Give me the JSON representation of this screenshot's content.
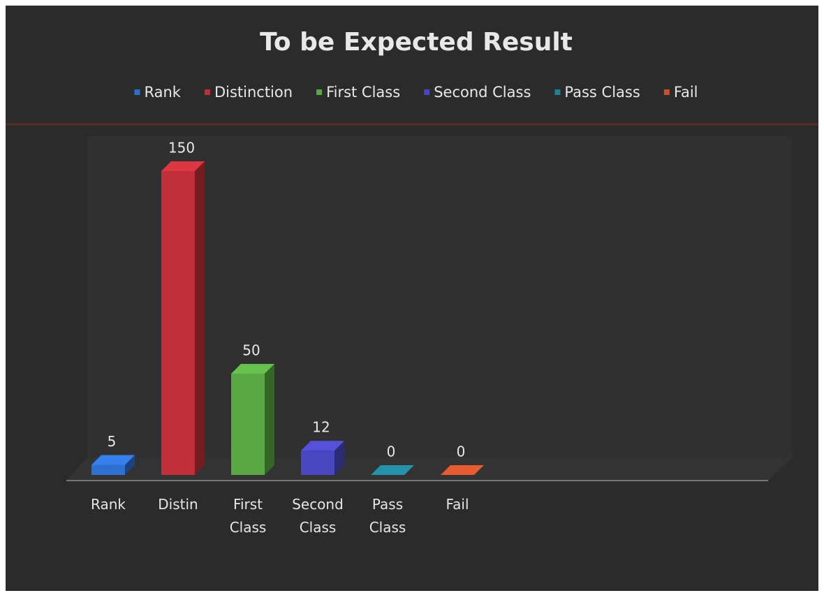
{
  "chart_data": {
    "type": "bar3d",
    "title": "To be Expected Result",
    "categories": [
      "Rank",
      "Distin",
      "First Class",
      "Second Class",
      "Pass Class",
      "Fail"
    ],
    "series": [
      {
        "name": "Rank",
        "color": "#2f6fd0",
        "values": [
          5,
          null,
          null,
          null,
          null,
          null
        ]
      },
      {
        "name": "Distinction",
        "color": "#c0303a",
        "values": [
          null,
          150,
          null,
          null,
          null,
          null
        ]
      },
      {
        "name": "First Class",
        "color": "#5aa845",
        "values": [
          null,
          null,
          50,
          null,
          null,
          null
        ]
      },
      {
        "name": "Second Class",
        "color": "#4a46c0",
        "values": [
          null,
          null,
          null,
          12,
          null,
          null
        ]
      },
      {
        "name": "Pass Class",
        "color": "#1f7f95",
        "values": [
          null,
          null,
          null,
          null,
          0,
          null
        ]
      },
      {
        "name": "Fail",
        "color": "#c8502a",
        "values": [
          null,
          null,
          null,
          null,
          null,
          0
        ]
      }
    ],
    "ylim": [
      0,
      150
    ],
    "legend": "top"
  }
}
